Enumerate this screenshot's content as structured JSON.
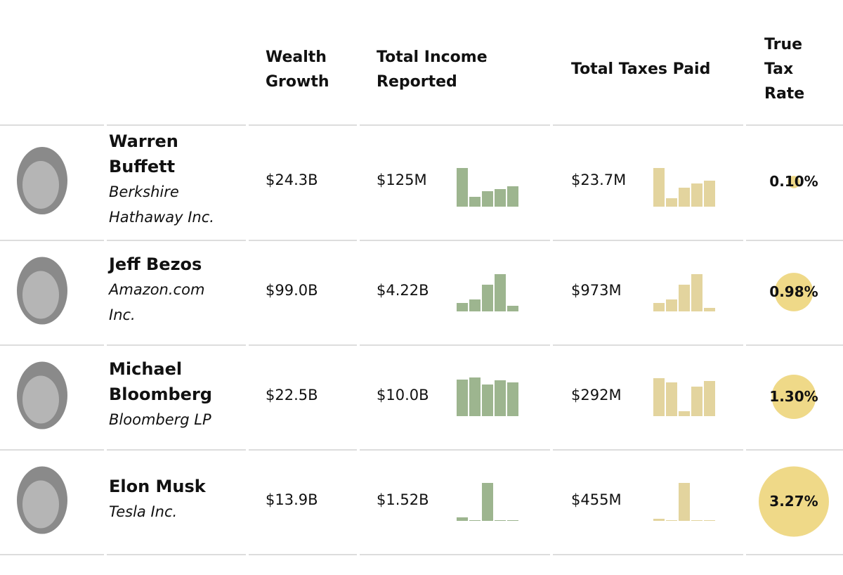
{
  "header": {
    "columns": [
      "Wealth Growth",
      "Total Income Reported",
      "Total Taxes Paid",
      "True Tax Rate"
    ]
  },
  "rows": [
    {
      "name": "Warren Buffett",
      "company": "Berkshire Hathaway Inc.",
      "wealth_growth": "$24.3B",
      "income": "$125M",
      "income_bars": [
        55,
        14,
        22,
        25,
        29
      ],
      "taxes": "$23.7M",
      "taxes_bars": [
        55,
        12,
        27,
        33,
        37
      ],
      "tax_rate": 0.1,
      "tax_rate_label": "0.10%"
    },
    {
      "name": "Jeff Bezos",
      "company": "Amazon.com Inc.",
      "wealth_growth": "$99.0B",
      "income": "$4.22B",
      "income_bars": [
        12,
        17,
        38,
        53,
        8
      ],
      "taxes": "$973M",
      "taxes_bars": [
        12,
        17,
        38,
        53,
        5
      ],
      "tax_rate": 0.98,
      "tax_rate_label": "0.98%"
    },
    {
      "name": "Michael Bloomberg",
      "company": "Bloomberg LP",
      "wealth_growth": "$22.5B",
      "income": "$10.0B",
      "income_bars": [
        52,
        55,
        45,
        51,
        48
      ],
      "taxes": "$292M",
      "taxes_bars": [
        54,
        48,
        7,
        42,
        50
      ],
      "tax_rate": 1.3,
      "tax_rate_label": "1.30%"
    },
    {
      "name": "Elon Musk",
      "company": "Tesla Inc.",
      "wealth_growth": "$13.9B",
      "income": "$1.52B",
      "income_bars": [
        5,
        1,
        54,
        1,
        1
      ],
      "taxes": "$455M",
      "taxes_bars": [
        3,
        1,
        54,
        1,
        1
      ],
      "tax_rate": 3.27,
      "tax_rate_label": "3.27%"
    }
  ]
}
